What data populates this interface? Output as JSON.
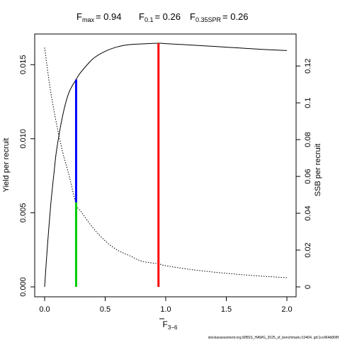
{
  "chart_data": {
    "type": "line",
    "title": {
      "fmax": {
        "sym": "F",
        "sub": "max",
        "value": "= 0.94"
      },
      "f01": {
        "sym": "F",
        "sub": "0.1",
        "value": "= 0.26"
      },
      "fspr": {
        "sym": "F",
        "sub": "0.35SPR",
        "value": "= 0.26"
      }
    },
    "xlabel": {
      "main": "F",
      "sub": "3−6"
    },
    "ylabel_left": "Yield per recruit",
    "ylabel_right": "SSB per recruit",
    "xlim": [
      0,
      2.0
    ],
    "ylim_left": [
      0,
      0.0164
    ],
    "ylim_right": [
      0,
      0.132
    ],
    "x_ticks": [
      "0.0",
      "0.5",
      "1.0",
      "1.5",
      "2.0"
    ],
    "y_ticks_left": [
      "0.000",
      "0.005",
      "0.010",
      "0.015"
    ],
    "y_ticks_right": [
      "0",
      "0.02",
      "0.04",
      "0.06",
      "0.08",
      "0.1",
      "0.12"
    ],
    "grid": false,
    "series": [
      {
        "axis": "left",
        "style": "solid",
        "color": "#000000",
        "x": [
          0,
          0.02,
          0.05,
          0.08,
          0.1,
          0.15,
          0.2,
          0.26,
          0.3,
          0.4,
          0.5,
          0.6,
          0.7,
          0.8,
          0.94,
          1.0,
          1.2,
          1.4,
          1.6,
          1.8,
          2.0
        ],
        "y": [
          0,
          0.0024,
          0.0055,
          0.0079,
          0.0093,
          0.0116,
          0.0131,
          0.014,
          0.0145,
          0.0154,
          0.0159,
          0.0162,
          0.01635,
          0.0164,
          0.01645,
          0.01642,
          0.01633,
          0.01623,
          0.01613,
          0.01603,
          0.01595
        ]
      },
      {
        "axis": "right",
        "style": "dotted",
        "color": "#000000",
        "x": [
          0,
          0.02,
          0.05,
          0.1,
          0.15,
          0.2,
          0.26,
          0.3,
          0.4,
          0.5,
          0.6,
          0.7,
          0.8,
          0.94,
          1.0,
          1.2,
          1.4,
          1.6,
          1.8,
          2.0
        ],
        "y": [
          0.13,
          0.12,
          0.106,
          0.088,
          0.073,
          0.061,
          0.045,
          0.041,
          0.032,
          0.025,
          0.02,
          0.017,
          0.014,
          0.0125,
          0.0115,
          0.0095,
          0.008,
          0.0068,
          0.0058,
          0.005
        ]
      }
    ],
    "reference_lines": [
      {
        "name": "Fmax",
        "x": 0.94,
        "y0": 0,
        "y1": 0.01645,
        "color": "#ff0000"
      },
      {
        "name": "F0.1",
        "x": 0.26,
        "y0": 0.0057,
        "y1": 0.014,
        "color": "#0000ff"
      },
      {
        "name": "F0.35SPR",
        "x": 0.26,
        "y0": 0,
        "y1": 0.0057,
        "color": "#00cc00"
      }
    ],
    "footnote": "stockassessment.org,WBSS_HAWG_2025_sf_benchmark,r10404, git:1cc464b808f"
  }
}
